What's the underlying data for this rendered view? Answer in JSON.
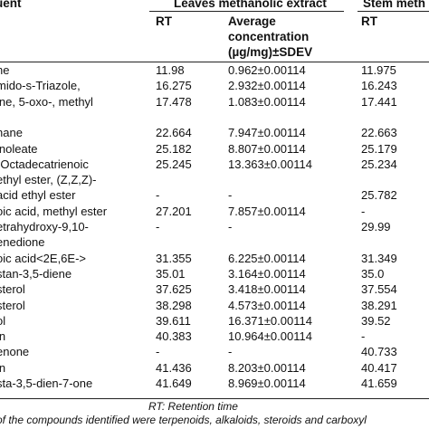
{
  "header": {
    "constituent": "uent",
    "leaves_group": "Leaves methanolic extract",
    "stem_group": "Stem meth",
    "leaves_rt": "RT",
    "avg_conc_1": "Average",
    "avg_conc_2": "concentration",
    "avg_conc_3": "(µg/mg)±SDEV",
    "stem_rt": "RT"
  },
  "rows": [
    {
      "name": "ne",
      "rt_leaves": "11.98",
      "conc_leaves": "0.962±0.00114",
      "rt_stem": "11.975"
    },
    {
      "name": "mido-s-Triazole,",
      "rt_leaves": "16.275",
      "conc_leaves": "2.932±0.00114",
      "rt_stem": "16.243"
    },
    {
      "name": "ine, 5-oxo-, methyl",
      "rt_leaves": "17.478",
      "conc_leaves": "1.083±0.00114",
      "rt_stem": "17.441"
    },
    {
      "name": "",
      "rt_leaves": "",
      "conc_leaves": "",
      "rt_stem": ""
    },
    {
      "name": "nane",
      "rt_leaves": "22.664",
      "conc_leaves": "7.947±0.00114",
      "rt_stem": "22.663"
    },
    {
      "name": "inoleate",
      "rt_leaves": "25.182",
      "conc_leaves": "8.807±0.00114",
      "rt_stem": "25.179"
    },
    {
      "name": "-Octadecatrienoic",
      "rt_leaves": "25.245",
      "conc_leaves": "13.363±0.00114",
      "rt_stem": "25.234"
    },
    {
      "name": "ethyl ester, (Z,Z,Z)-",
      "rt_leaves": "",
      "conc_leaves": "",
      "rt_stem": ""
    },
    {
      "name": "acid ethyl ester",
      "rt_leaves": "-",
      "conc_leaves": "-",
      "rt_stem": "25.782"
    },
    {
      "name": "oic acid, methyl ester",
      "rt_leaves": "27.201",
      "conc_leaves": "7.857±0.00114",
      "rt_stem": "-"
    },
    {
      "name": "etrahydroxy-9,10-",
      "rt_leaves": "-",
      "conc_leaves": "-",
      "rt_stem": "29.99"
    },
    {
      "name": "enedione",
      "rt_leaves": "",
      "conc_leaves": "",
      "rt_stem": ""
    },
    {
      "name": "oic acid<2E,6E->",
      "rt_leaves": "31.355",
      "conc_leaves": "6.225±0.00114",
      "rt_stem": "31.349"
    },
    {
      "name": "stan-3,5-diene",
      "rt_leaves": "35.01",
      "conc_leaves": "3.164±0.00114",
      "rt_stem": "35.0"
    },
    {
      "name": "sterol",
      "rt_leaves": "37.625",
      "conc_leaves": "3.418±0.00114",
      "rt_stem": "37.554"
    },
    {
      "name": "sterol",
      "rt_leaves": "38.298",
      "conc_leaves": "4.573±0.00114",
      "rt_stem": "38.291"
    },
    {
      "name": "ol",
      "rt_leaves": "39.611",
      "conc_leaves": "16.371±0.00114",
      "rt_stem": "39.52"
    },
    {
      "name": "in",
      "rt_leaves": "40.383",
      "conc_leaves": "10.964±0.00114",
      "rt_stem": "-"
    },
    {
      "name": "enone",
      "rt_leaves": "-",
      "conc_leaves": "-",
      "rt_stem": "40.733"
    },
    {
      "name": "in",
      "rt_leaves": "41.436",
      "conc_leaves": "8.203±0.00114",
      "rt_stem": "40.417"
    },
    {
      "name": "sta-3,5-dien-7-one",
      "rt_leaves": "41.649",
      "conc_leaves": "8.969±0.00114",
      "rt_stem": "41.659"
    }
  ],
  "footnotes": {
    "rt": "RT: Retention time",
    "compounds": "of the compounds identified were terpenoids, alkaloids, steroids and carboxyl"
  }
}
